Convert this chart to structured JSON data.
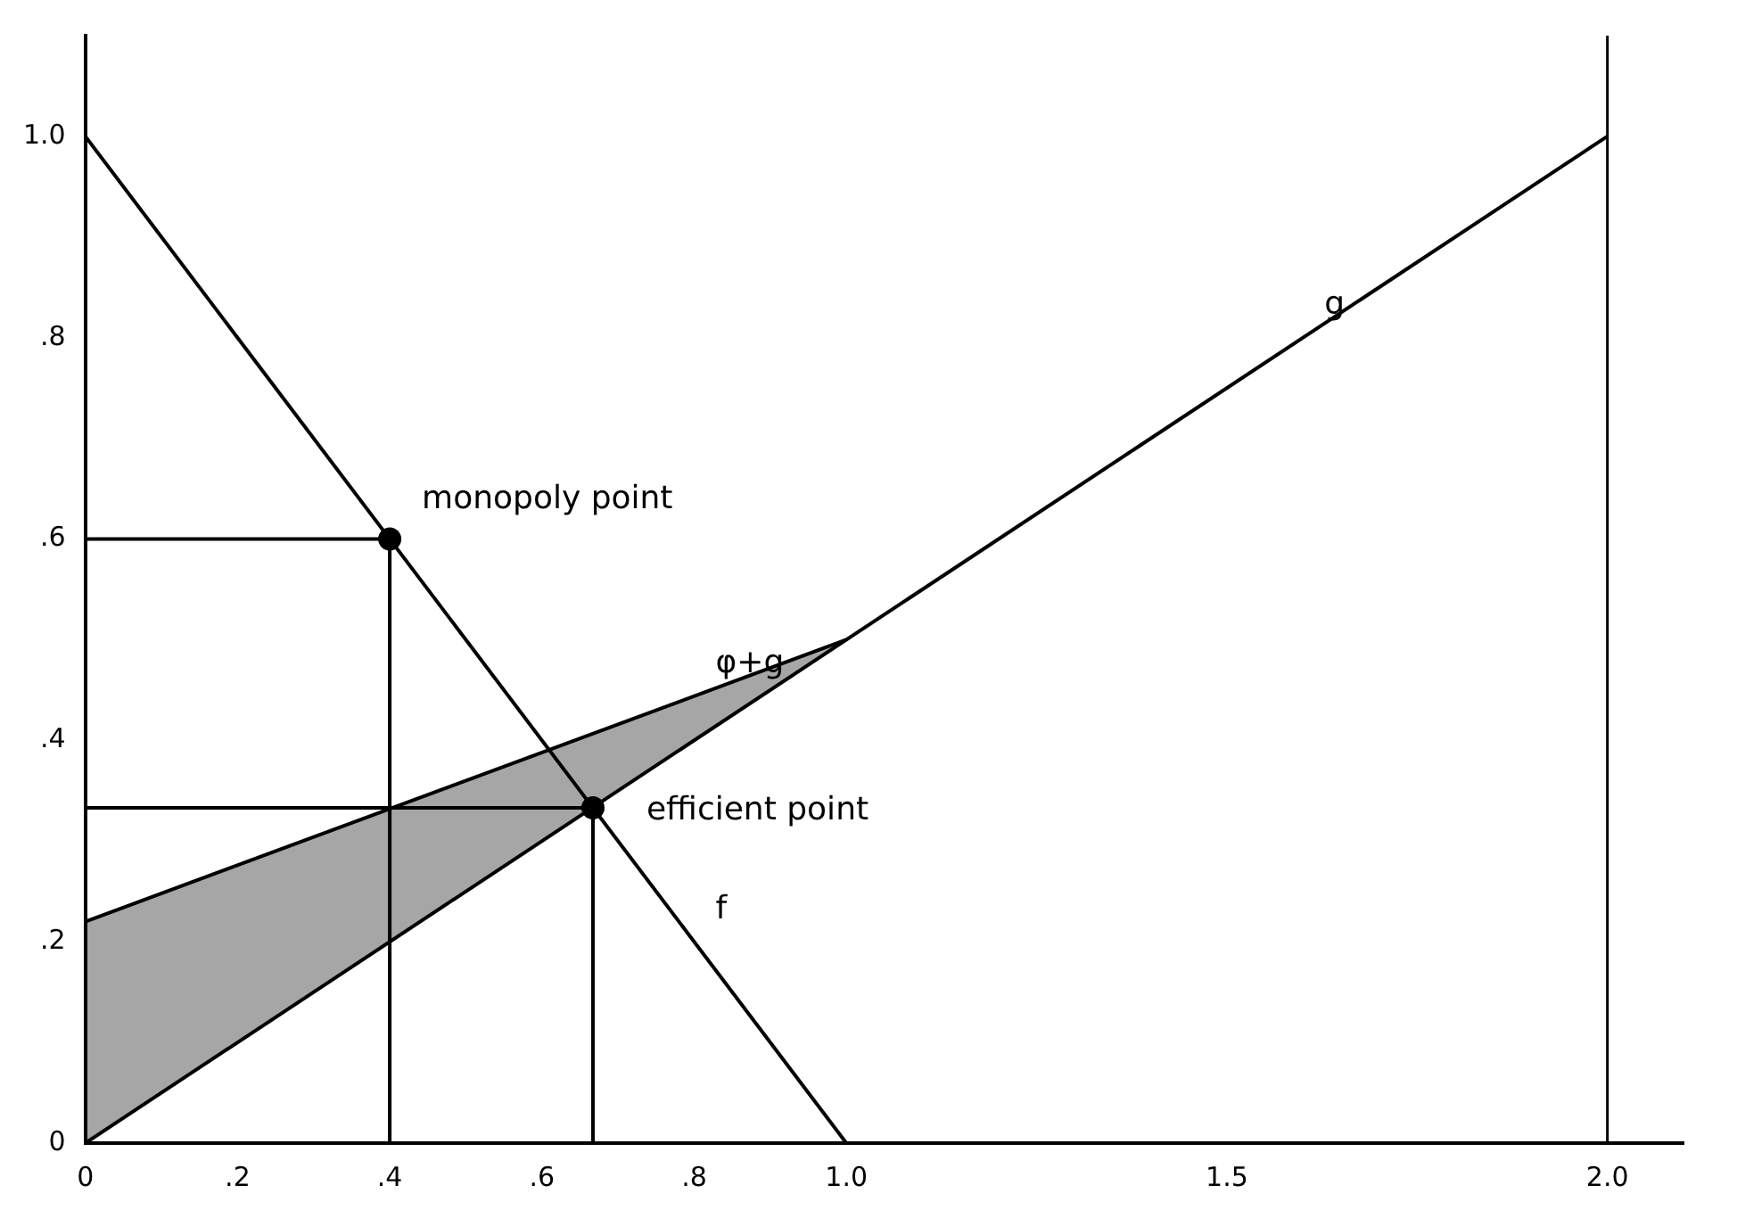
{
  "chart_data": {
    "type": "line",
    "xlim": [
      0,
      2.1
    ],
    "ylim": [
      0,
      1.1
    ],
    "xticks": [
      0,
      {
        "value": 0.2,
        "label": ".2"
      },
      {
        "value": 0.4,
        "label": ".4"
      },
      {
        "value": 0.6,
        "label": ".6"
      },
      {
        "value": 0.8,
        "label": ".8"
      },
      {
        "value": 1,
        "label": "1.0"
      },
      {
        "value": 1.5,
        "label": "1.5"
      },
      {
        "value": 2,
        "label": "2.0"
      }
    ],
    "yticks": [
      0,
      {
        "value": 0.2,
        "label": ".2"
      },
      {
        "value": 0.4,
        "label": ".4"
      },
      {
        "value": 0.6,
        "label": ".6"
      },
      {
        "value": 0.8,
        "label": ".8"
      },
      {
        "value": 1,
        "label": "1.0"
      }
    ],
    "grid": false,
    "legend": false,
    "series": [
      {
        "name": "f",
        "type": "line",
        "color": "#000000",
        "x": [
          0,
          1
        ],
        "values": [
          1,
          0
        ]
      },
      {
        "name": "g",
        "type": "line",
        "color": "#000000",
        "x": [
          0,
          2
        ],
        "values": [
          0,
          1
        ]
      },
      {
        "name": "φ+g",
        "type": "line",
        "color": "#000000",
        "x": [
          0,
          1
        ],
        "values": [
          0.22,
          0.5
        ],
        "lower": [
          0,
          0.5
        ],
        "upper": [
          0.22,
          0.5
        ]
      },
      {
        "type": "line",
        "color": "#000000",
        "x": [
          0,
          0.4,
          0.4
        ],
        "values": [
          0.6,
          0.6,
          0
        ]
      },
      {
        "type": "line",
        "color": "#000000",
        "x": [
          0,
          0.667,
          0.667
        ],
        "values": [
          0.333,
          0.333,
          0
        ]
      },
      {
        "type": "scatter",
        "color": "#000000",
        "x": [
          0.4,
          0.667
        ],
        "values": [
          0.6,
          0.333
        ],
        "marker": "circle"
      }
    ],
    "ref_lines": [
      {
        "axis": "x",
        "value": 2
      }
    ],
    "annotations": [
      {
        "text": "monopoly point",
        "x": 0.4,
        "y": 0.6
      },
      {
        "text": "efficient point",
        "x": 0.667,
        "y": 0.333
      }
    ]
  }
}
